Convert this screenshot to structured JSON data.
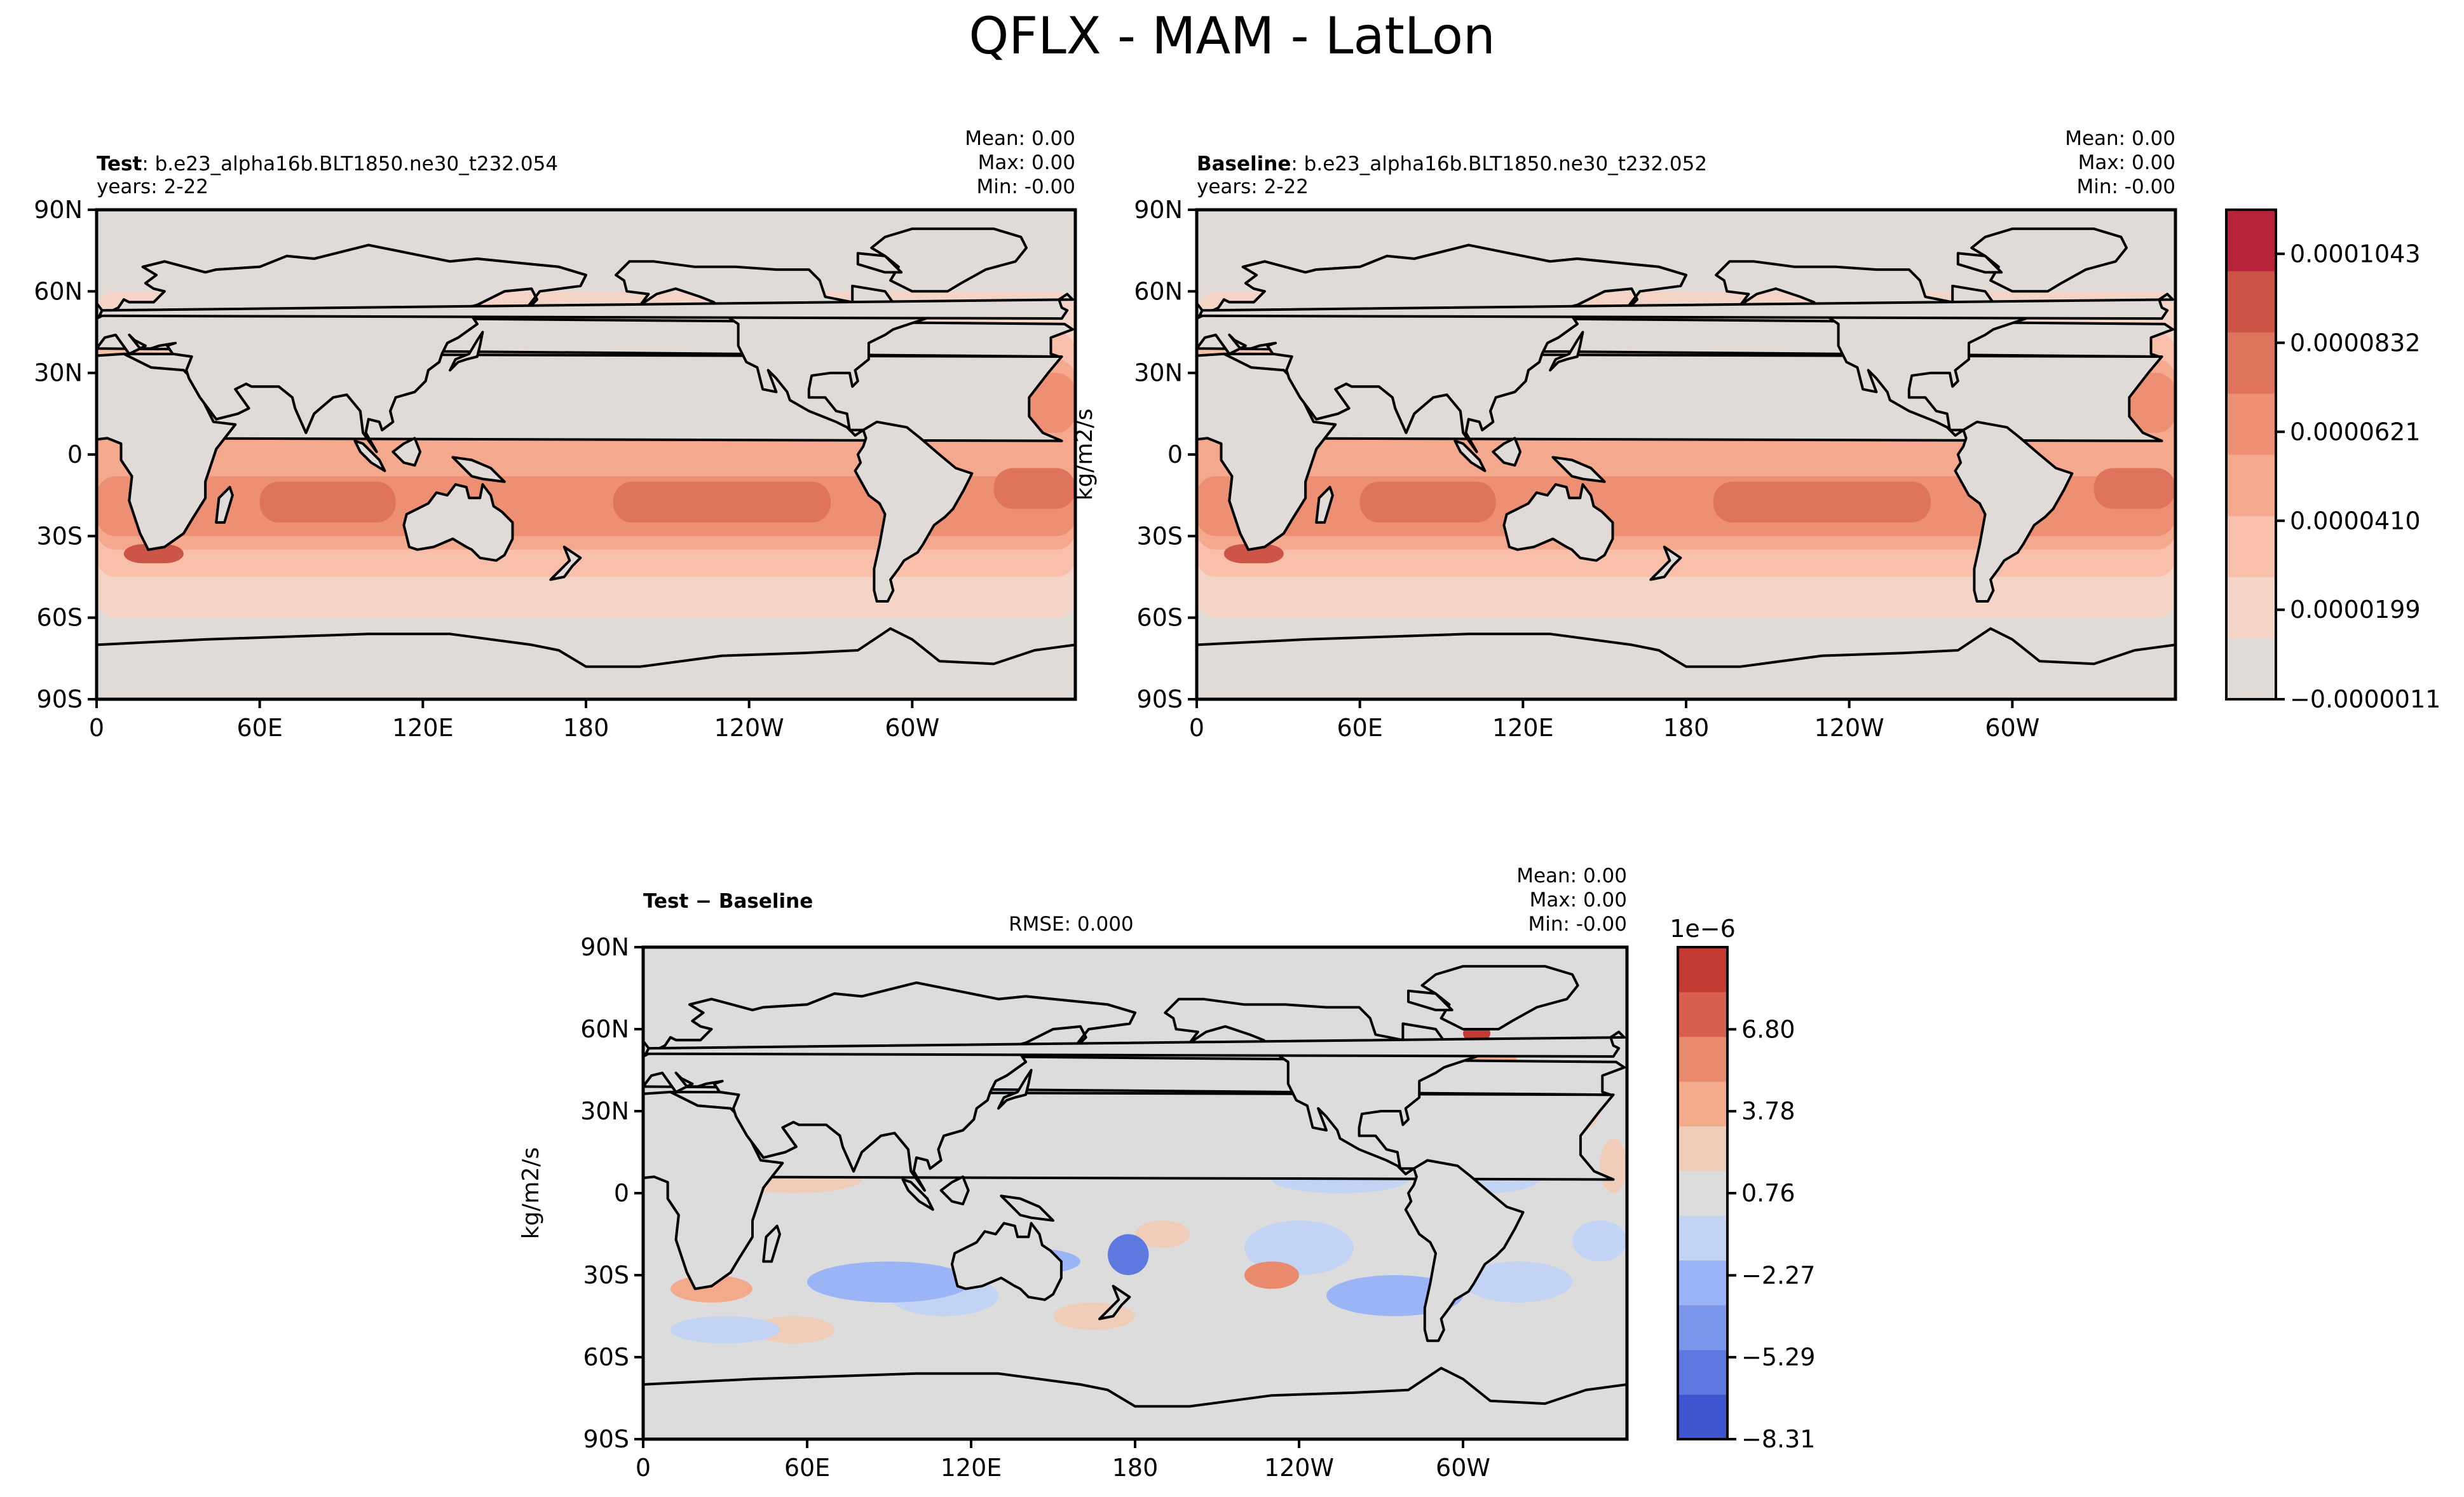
{
  "figure_title": "QFLX - MAM - LatLon",
  "colors": {
    "land": "#e1dbd8",
    "ocean_levels": [
      "#e1dbd8",
      "#f4d4c7",
      "#f8c0aa",
      "#f4a88d",
      "#ec8f73",
      "#df745c",
      "#cd5547",
      "#b7243a"
    ],
    "diff_levels": [
      "#3f55d0",
      "#5d79e0",
      "#7b97ec",
      "#9ab4f5",
      "#c2d3f4",
      "#dcdcdc",
      "#f0cdb8",
      "#f3aa8a",
      "#e88a6b",
      "#d6604d",
      "#c33a33"
    ],
    "coast": "#000000"
  },
  "chart_data": [
    {
      "type": "heatmap",
      "id": "test",
      "title_bold": "Test",
      "title_rest": ": b.e23_alpha16b.BLT1850.ne30_t232.054",
      "years": "years: 2-22",
      "stats": [
        "Mean:  0.00",
        "Max:  0.00",
        "Min: -0.00"
      ],
      "xticks": [
        "0",
        "60E",
        "120E",
        "180",
        "120W",
        "60W"
      ],
      "yticks": [
        "90N",
        "60N",
        "30N",
        "0",
        "30S",
        "60S",
        "90S"
      ],
      "xlim": [
        0,
        360
      ],
      "ylim": [
        -90,
        90
      ],
      "ylabel": ""
    },
    {
      "type": "heatmap",
      "id": "baseline",
      "title_bold": "Baseline",
      "title_rest": ": b.e23_alpha16b.BLT1850.ne30_t232.052",
      "years": "years: 2-22",
      "stats": [
        "Mean:  0.00",
        "Max:  0.00",
        "Min: -0.00"
      ],
      "xticks": [
        "0",
        "60E",
        "120E",
        "180",
        "120W",
        "60W"
      ],
      "yticks": [
        "90N",
        "60N",
        "30N",
        "0",
        "30S",
        "60S",
        "90S"
      ],
      "xlim": [
        0,
        360
      ],
      "ylim": [
        -90,
        90
      ],
      "ylabel": "kg/m2/s",
      "colorbar": {
        "ticks": [
          "0.0001043",
          "0.0000832",
          "0.0000621",
          "0.0000410",
          "0.0000199",
          "−0.0000011"
        ],
        "range": [
          -1.1e-06,
          0.000114
        ]
      }
    },
    {
      "type": "heatmap",
      "id": "diff",
      "title_bold": "Test − Baseline",
      "rmse": "RMSE: 0.000",
      "stats": [
        "Mean:  0.00",
        "Max:  0.00",
        "Min: -0.00"
      ],
      "xticks": [
        "0",
        "60E",
        "120E",
        "180",
        "120W",
        "60W"
      ],
      "yticks": [
        "90N",
        "60N",
        "30N",
        "0",
        "30S",
        "60S",
        "90S"
      ],
      "xlim": [
        0,
        360
      ],
      "ylim": [
        -90,
        90
      ],
      "ylabel": "kg/m2/s",
      "colorbar": {
        "scale": "1e−6",
        "ticks": [
          "6.80",
          "3.78",
          "0.76",
          "−2.27",
          "−5.29",
          "−8.31"
        ],
        "range": [
          -8.31,
          9.83
        ]
      }
    }
  ]
}
